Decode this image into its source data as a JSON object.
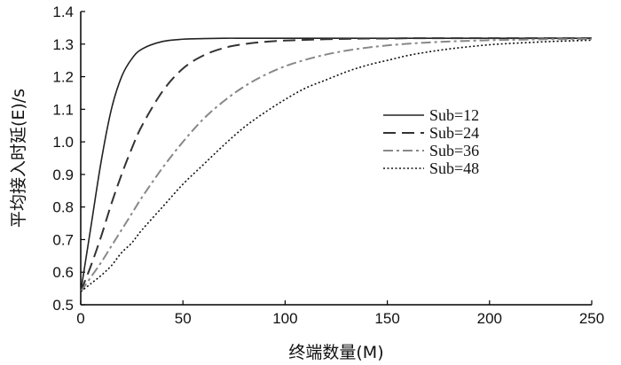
{
  "chart_data": {
    "type": "line",
    "title": "",
    "xlabel": "终端数量(M)",
    "ylabel": "平均接入时延(E)/s",
    "xlim": [
      0,
      250
    ],
    "ylim": [
      0.5,
      1.4
    ],
    "x_ticks": [
      0,
      50,
      100,
      150,
      200,
      250
    ],
    "y_ticks": [
      0.5,
      0.6,
      0.7,
      0.8,
      0.9,
      1.0,
      1.1,
      1.2,
      1.3,
      1.4
    ],
    "grid": false,
    "legend_position": "right-middle",
    "x": [
      0,
      5,
      10,
      15,
      20,
      25,
      30,
      40,
      50,
      60,
      70,
      80,
      90,
      100,
      110,
      120,
      130,
      140,
      150,
      160,
      170,
      180,
      190,
      200,
      210,
      220,
      230,
      240,
      250
    ],
    "series": [
      {
        "name": "Sub=12",
        "color": "#222222",
        "dash": "solid",
        "values": [
          0.54,
          0.74,
          0.94,
          1.1,
          1.2,
          1.255,
          1.285,
          1.308,
          1.315,
          1.317,
          1.318,
          1.318,
          1.318,
          1.318,
          1.318,
          1.318,
          1.318,
          1.318,
          1.318,
          1.318,
          1.318,
          1.318,
          1.318,
          1.318,
          1.318,
          1.318,
          1.318,
          1.318,
          1.318
        ]
      },
      {
        "name": "Sub=24",
        "color": "#333333",
        "dash": "long-dash",
        "values": [
          0.54,
          0.62,
          0.71,
          0.81,
          0.9,
          0.98,
          1.05,
          1.155,
          1.225,
          1.265,
          1.288,
          1.3,
          1.307,
          1.311,
          1.313,
          1.315,
          1.316,
          1.317,
          1.317,
          1.318,
          1.318,
          1.318,
          1.318,
          1.318,
          1.318,
          1.318,
          1.318,
          1.318,
          1.318
        ]
      },
      {
        "name": "Sub=36",
        "color": "#888888",
        "dash": "dash-dot",
        "values": [
          0.54,
          0.585,
          0.63,
          0.68,
          0.73,
          0.78,
          0.83,
          0.92,
          1.0,
          1.07,
          1.125,
          1.17,
          1.205,
          1.232,
          1.252,
          1.268,
          1.28,
          1.289,
          1.296,
          1.301,
          1.305,
          1.308,
          1.31,
          1.312,
          1.313,
          1.314,
          1.315,
          1.315,
          1.316
        ]
      },
      {
        "name": "Sub=48",
        "color": "#111111",
        "dash": "dotted",
        "values": [
          0.54,
          0.565,
          0.59,
          0.62,
          0.66,
          0.69,
          0.73,
          0.8,
          0.87,
          0.93,
          0.99,
          1.045,
          1.09,
          1.13,
          1.165,
          1.19,
          1.215,
          1.235,
          1.25,
          1.265,
          1.276,
          1.285,
          1.292,
          1.298,
          1.302,
          1.305,
          1.308,
          1.31,
          1.312
        ]
      }
    ]
  }
}
